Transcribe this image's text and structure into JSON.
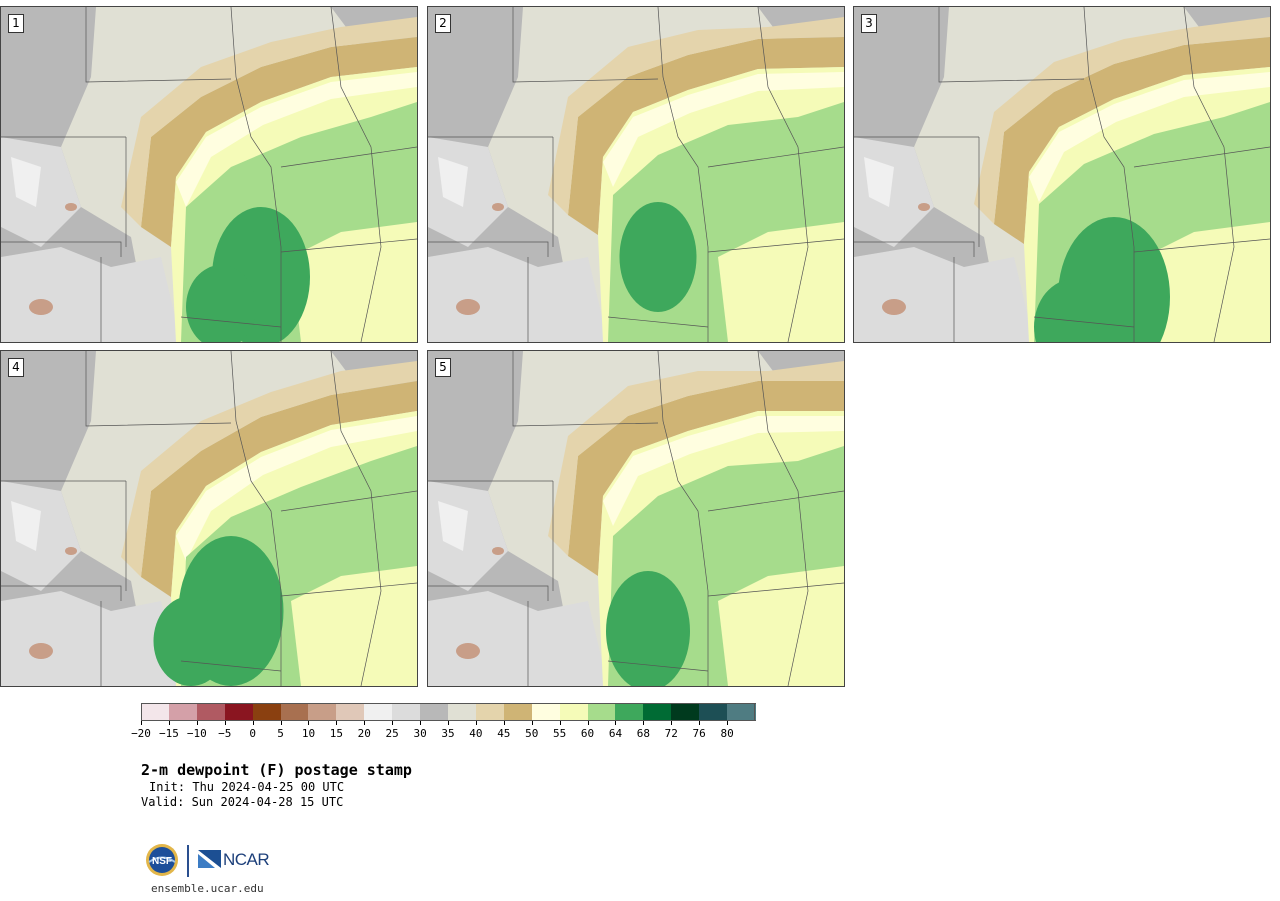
{
  "panels": [
    {
      "label": "1"
    },
    {
      "label": "2"
    },
    {
      "label": "3"
    },
    {
      "label": "4"
    },
    {
      "label": "5"
    }
  ],
  "colorbar": {
    "colors": [
      "#f3e6ea",
      "#d4a0a8",
      "#b05a62",
      "#8a1520",
      "#8a4010",
      "#a87050",
      "#c89e88",
      "#e0c8b8",
      "#f0f0f0",
      "#dcdcdc",
      "#b8b8b8",
      "#e0e0d4",
      "#e4d4ac",
      "#cfb475",
      "#fffee0",
      "#f5fbb8",
      "#a6dc8c",
      "#3ea85c",
      "#006b34",
      "#003a1e",
      "#1d4f55",
      "#4f7c82"
    ],
    "tick_labels": [
      "−20",
      "−15",
      "−10",
      "−5",
      "0",
      "5",
      "10",
      "15",
      "20",
      "25",
      "30",
      "35",
      "40",
      "45",
      "50",
      "55",
      "60",
      "64",
      "68",
      "72",
      "76",
      "80"
    ]
  },
  "title": "2-m dewpoint (F) postage stamp",
  "init": "Init: Thu 2024-04-25 00 UTC",
  "valid": "Valid: Sun 2024-04-28 15 UTC",
  "footer": {
    "nsf_logo_text": "NSF",
    "ncar_logo_text": "NCAR",
    "site": "ensemble.ucar.edu"
  }
}
